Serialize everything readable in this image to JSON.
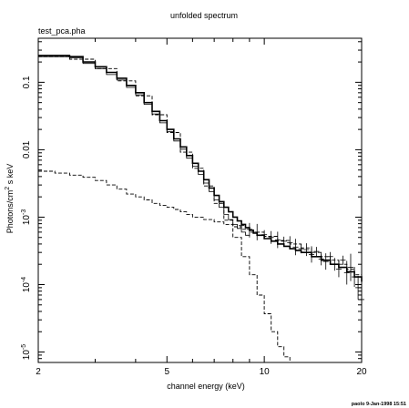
{
  "chart_data": {
    "type": "line",
    "title": "unfolded spectrum",
    "subtitle": "test_pca.pha",
    "xlabel": "channel energy (keV)",
    "ylabel_base": "Photons/cm",
    "ylabel_sup": "2",
    "ylabel_tail": " s keV",
    "xscale": "log",
    "yscale": "log",
    "xlim": [
      2,
      20
    ],
    "ylim": [
      7e-06,
      0.45
    ],
    "grid": false,
    "legend": "none",
    "footer": "paolo  9-Jan-1998 15:51",
    "x_ticks": [
      {
        "value": 2,
        "label": "2"
      },
      {
        "value": 5,
        "label": "5"
      },
      {
        "value": 10,
        "label": "10"
      },
      {
        "value": 20,
        "label": "20"
      }
    ],
    "y_ticks": [
      {
        "value": 0.1,
        "label": "0.1"
      },
      {
        "value": 0.01,
        "label": "0.01"
      },
      {
        "value": 0.001,
        "label": "10",
        "sup": "-3"
      },
      {
        "value": 0.0001,
        "label": "10",
        "sup": "-4"
      },
      {
        "value": 1e-05,
        "label": "10",
        "sup": "-5"
      }
    ],
    "series": [
      {
        "style": "solid-thick",
        "x": [
          2.0,
          2.5,
          2.75,
          3.0,
          3.25,
          3.5,
          3.75,
          4.0,
          4.25,
          4.5,
          4.75,
          5.0,
          5.25,
          5.5,
          5.75,
          6.0,
          6.25,
          6.5,
          6.75,
          7.0,
          7.25,
          7.5,
          7.75,
          8.0,
          8.25,
          8.5,
          8.75,
          9.0,
          9.25,
          9.5,
          10.0,
          10.5,
          11.0,
          11.5,
          12.0,
          12.5,
          13.0,
          14.0,
          15.0,
          16.0,
          17.0,
          18.0,
          19.0,
          20.0
        ],
        "y": [
          0.25,
          0.24,
          0.2,
          0.17,
          0.14,
          0.115,
          0.09,
          0.07,
          0.05,
          0.037,
          0.027,
          0.02,
          0.0145,
          0.011,
          0.0082,
          0.0063,
          0.0048,
          0.0036,
          0.0027,
          0.0021,
          0.0017,
          0.0014,
          0.0012,
          0.001,
          0.00088,
          0.00078,
          0.0007,
          0.00064,
          0.00058,
          0.00054,
          0.00048,
          0.00044,
          0.0004,
          0.00037,
          0.00034,
          0.00032,
          0.0003,
          0.00026,
          0.00023,
          0.0002,
          0.00018,
          0.000155,
          0.00013,
          0.00011
        ]
      },
      {
        "style": "solid-thin",
        "x": [
          2.0,
          2.5,
          2.75,
          3.0,
          3.25,
          3.5,
          3.75,
          4.0,
          4.25,
          4.5,
          4.75,
          5.0,
          5.25,
          5.5,
          5.75,
          6.0,
          6.25,
          6.5,
          6.75,
          7.0,
          7.25,
          7.5,
          7.75,
          8.0,
          8.25,
          8.5,
          8.75,
          9.0
        ],
        "y": [
          0.24,
          0.23,
          0.19,
          0.16,
          0.13,
          0.108,
          0.084,
          0.065,
          0.047,
          0.034,
          0.025,
          0.0185,
          0.0135,
          0.0102,
          0.0075,
          0.0057,
          0.0043,
          0.0032,
          0.0024,
          0.0018,
          0.0014,
          0.0011,
          0.00092,
          0.00078,
          0.00068,
          0.0006,
          0.00054,
          0.0005
        ]
      },
      {
        "style": "dashed",
        "x": [
          2.0,
          2.25,
          2.5,
          2.75,
          3.0,
          3.25,
          3.5,
          3.75,
          4.0,
          4.25,
          4.5,
          4.75,
          5.0,
          5.25,
          5.5,
          5.75,
          6.0,
          6.5,
          7.0,
          7.5,
          8.0,
          8.5,
          9.0,
          10.0,
          11.0,
          12.0,
          13.0,
          14.0,
          15.0,
          16.0,
          17.0,
          18.0,
          19.0,
          20.0
        ],
        "y": [
          0.0048,
          0.0045,
          0.0042,
          0.0039,
          0.0035,
          0.003,
          0.0026,
          0.0022,
          0.002,
          0.0018,
          0.0016,
          0.0015,
          0.0014,
          0.0013,
          0.0012,
          0.0011,
          0.001,
          0.00092,
          0.00085,
          0.00078,
          0.00072,
          0.00066,
          0.0006,
          0.00052,
          0.00045,
          0.0004,
          0.00035,
          0.0003,
          0.00026,
          0.00023,
          0.0002,
          0.00017,
          0.00014,
          0.00012
        ]
      },
      {
        "style": "dashed",
        "x": [
          2.0,
          2.5,
          3.0,
          3.5,
          4.0,
          4.5,
          5.0,
          5.5,
          6.0,
          6.5,
          7.0,
          7.5,
          8.0,
          8.5,
          9.0,
          9.5,
          10.0,
          10.5,
          11.0,
          11.5,
          12.0
        ],
        "y": [
          0.24,
          0.22,
          0.16,
          0.105,
          0.063,
          0.033,
          0.018,
          0.0092,
          0.0053,
          0.0029,
          0.0016,
          0.0009,
          0.0005,
          0.00026,
          0.00014,
          7e-05,
          3.7e-05,
          2e-05,
          1.2e-05,
          8.5e-06,
          7e-06
        ]
      },
      {
        "style": "errorbars",
        "x": [
          8.5,
          9.0,
          9.5,
          10.0,
          10.5,
          11.0,
          11.5,
          12.0,
          12.5,
          13.0,
          13.5,
          14.0,
          14.5,
          15.0,
          15.5,
          16.0,
          16.5,
          17.0,
          17.5,
          18.0,
          18.5,
          19.0,
          19.5,
          20.0
        ],
        "y": [
          0.00075,
          0.00066,
          0.0006,
          0.00055,
          0.0005,
          0.00046,
          0.00044,
          0.00042,
          0.00036,
          0.00034,
          0.00033,
          0.00028,
          0.00031,
          0.00024,
          0.00022,
          0.00026,
          0.0002,
          0.00017,
          0.00023,
          0.00015,
          0.00018,
          0.00013,
          9e-05,
          6e-05
        ]
      }
    ]
  }
}
